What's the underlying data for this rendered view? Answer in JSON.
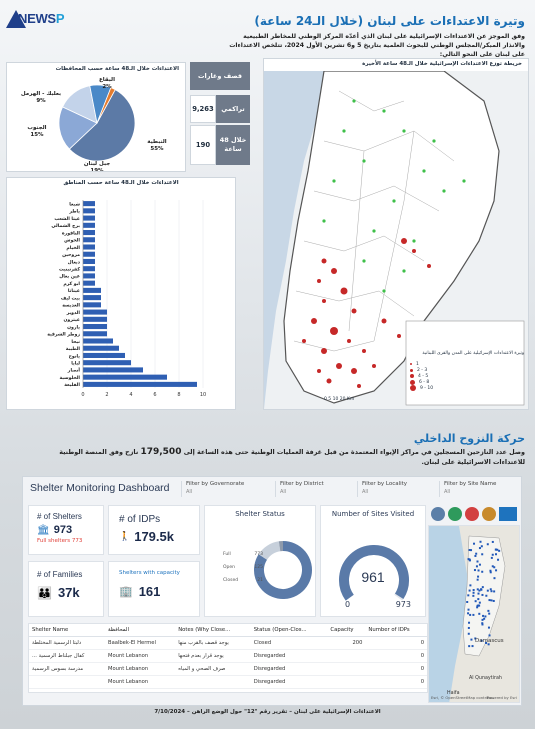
{
  "brand": {
    "logo_text_a": "NEWS",
    "logo_text_b": "P"
  },
  "header": {
    "title": "وتيرة الاعتداءات على لبنان (خلال الـ24 ساعة)",
    "intro": "وفق الموجز عن الاعتداءات الإسرائيلية على لبنان الذي أعدّه المركز الوطني للمخاطر الطبيعية والانذار المبكر/المجلس الوطني للبحوث العلمية بتاريخ 5 و6 تشرين الأول 2024، تتلخص الاعتداءات على لبنان على النحو التالي:"
  },
  "pie": {
    "title": "الاعتداءات خلال الـ48 ساعة حسب المحافظات",
    "slices": [
      {
        "label": "النبطية",
        "value": 55,
        "color": "#5c7aa6"
      },
      {
        "label": "جبل لبنان",
        "value": 19,
        "color": "#8ba8d6"
      },
      {
        "label": "الجنوب",
        "value": 15,
        "color": "#c3d3ea"
      },
      {
        "label": "بعلبك - الهرمل",
        "value": 9,
        "color": "#4a89c8"
      },
      {
        "label": "البقاع",
        "value": 2,
        "color": "#e57c2e"
      }
    ],
    "pct": [
      "55%",
      "19%",
      "15%",
      "9%",
      "2%"
    ]
  },
  "stats": {
    "header": "قصف وغارات",
    "rows": [
      {
        "label": "تراكمي",
        "value": "9,263"
      },
      {
        "label": "خلال 48 ساعة",
        "value": "190"
      }
    ]
  },
  "bars": {
    "title": "الاعتداءات خلال الـ48 ساعة حسب المناطق",
    "categories": [
      "القليعة",
      "الحلوسية",
      "أنصار",
      "لبايا",
      "يانوح",
      "الطيبة",
      "نيحا",
      "زوطر الشرقية",
      "يارون",
      "عيترون",
      "الدوير",
      "العديسة",
      "بيت ليف",
      "عيناتا",
      "ابو كرم",
      "عين بعال",
      "كفرتبنيت",
      "دبعال",
      "مروحين",
      "الخيام",
      "الحوش",
      "الناقورة",
      "برج الشمالي",
      "عيتا الشعب",
      "ياطر",
      "شبعا"
    ],
    "chart_data": {
      "type": "bar",
      "orientation": "horizontal",
      "categories": [
        "القليعة",
        "الحلوسية",
        "أنصار",
        "لبايا",
        "يانوح",
        "الطيبة",
        "نيحا",
        "زوطر الشرقية",
        "يارون",
        "عيترون",
        "الدوير",
        "العديسة",
        "بيت ليف",
        "عيناتا",
        "ابو كرم",
        "عين بعال",
        "كفرتبنيت",
        "دبعال",
        "مروحين",
        "الخيام",
        "الحوش",
        "الناقورة",
        "برج الشمالي",
        "عيتا الشعب",
        "ياطر",
        "شبعا"
      ],
      "values": [
        9.5,
        7,
        5,
        4,
        3.5,
        3,
        2.5,
        2,
        2,
        2,
        2,
        1.5,
        1.5,
        1.5,
        1,
        1,
        1,
        1,
        1,
        1,
        1,
        1,
        1,
        1,
        1,
        1
      ],
      "xlim": [
        0,
        12
      ],
      "xticks": [
        "0",
        "2",
        "4",
        "6",
        "8",
        "10"
      ],
      "color": "#2f5fb3"
    }
  },
  "map": {
    "title": "خريطة توزع الاعتداءات الإسرائيلية خلال الـ48 ساعة الأخيرة",
    "legend_title": "وتيرة الاعتداءات الإسرائيلية على المدن والقرى اللبنانية",
    "legend_items": [
      "1",
      "2 - 3",
      "4 - 5",
      "6 - 8",
      "9 - 10"
    ],
    "scale": "0 5 10 20 Km"
  },
  "displacement": {
    "title": "حركة النزوح الداخلي",
    "text_a": "وصل عدد النازحين المسجلين في مراكز الإيواء المعتمدة من قبل غرفة العمليات الوطنية حتى هذه الساعة إلى",
    "number": "179,500",
    "text_b": "نازح وفق المنصة الوطنية للاعتداءات الاسرائيلية على لبنان."
  },
  "dashboard": {
    "title": "Shelter Monitoring Dashboard",
    "filters": [
      {
        "label": "Filter by Governorate",
        "value": "All"
      },
      {
        "label": "Filter by District",
        "value": "All"
      },
      {
        "label": "Filter by Locality",
        "value": "All"
      },
      {
        "label": "Filter by Site Name",
        "value": "All"
      }
    ],
    "shelters_label": "# of Shelters",
    "shelters_value": "973",
    "shelters_full": "Full shelters 773",
    "idps_label": "# of IDPs",
    "idps_value": "179.5k",
    "families_label": "# of Families",
    "families_value": "37k",
    "capacity_label": "Shelters with capacity",
    "capacity_value": "161",
    "status_title": "Shelter Status",
    "status_items": [
      {
        "label": "Full",
        "value": "773",
        "color": "#5a7aa8"
      },
      {
        "label": "Open",
        "value": "125",
        "color": "#c7d0db"
      },
      {
        "label": "Closed",
        "value": "21",
        "color": "#8e9aab"
      }
    ],
    "gauge_title": "Number of Sites Visited",
    "gauge_value": "961",
    "gauge_min": "0",
    "gauge_max": "973",
    "table_headers": [
      "Shelter Name",
      "المحافظة",
      "Notes (Why Close...",
      "Status (Open-Clos...",
      "Capacity",
      "Number of IDPs"
    ],
    "table_rows": [
      [
        "دلبتا الرسمية المختلطة",
        "Baalbek-El Hermel",
        "يوجد قصف بالقرب منها",
        "Closed",
        "200",
        "0"
      ],
      [
        "... كفال جبلناط الرسمية",
        "Mount Lebanon",
        "يوجد قرار بعدم فتحها",
        "Disregarded",
        "",
        "0"
      ],
      [
        "مدرسة بسوس الرسمية",
        "Mount Lebanon",
        "صرف الصحي و المياه",
        "Disregarded",
        "",
        "0"
      ],
      [
        "",
        "Mount Lebanon",
        "",
        "Disregarded",
        "",
        "0"
      ]
    ],
    "map_labels": [
      "Damascus",
      "Al Qunaytirah",
      "Haifa"
    ],
    "map_attrib": "Esri, © OpenStreetMap contribu...",
    "powered": "Powered by Esri"
  },
  "footer": "الاعتداءات الإسرائيلية على لبنان – تقرير رقم \"12\" حول الوضع الراهن – 7/10/2024"
}
